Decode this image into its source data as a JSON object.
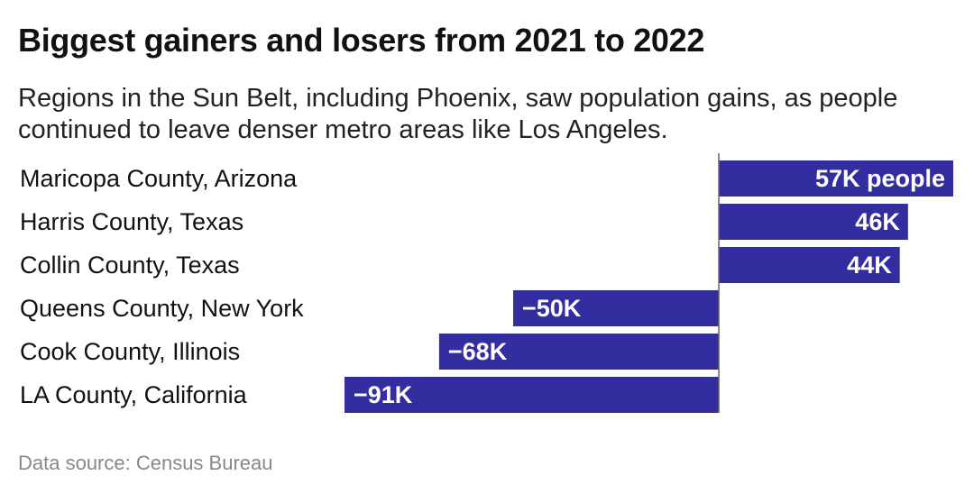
{
  "header": {
    "title": "Biggest gainers and losers from 2021 to 2022",
    "subtitle": "Regions in the Sun Belt, including Phoenix, saw population gains, as people continued to leave denser metro areas like Los Angeles."
  },
  "footer": {
    "source": "Data source: Census Bureau"
  },
  "chart_data": {
    "type": "bar",
    "orientation": "horizontal",
    "title": "Biggest gainers and losers from 2021 to 2022",
    "subtitle": "Regions in the Sun Belt, including Phoenix, saw population gains, as people continued to leave denser metro areas like Los Angeles.",
    "categories": [
      "Maricopa County, Arizona",
      "Harris County, Texas",
      "Collin County, Texas",
      "Queens County, New York",
      "Cook County, Illinois",
      "LA County, California"
    ],
    "values": [
      57000,
      46000,
      44000,
      -50000,
      -68000,
      -91000
    ],
    "data_labels": [
      "57K people",
      "46K",
      "44K",
      "−50K",
      "−68K",
      "−91K"
    ],
    "xlim": [
      -91000,
      57000
    ],
    "bar_color": "#332ea0",
    "label_color": "#ffffff",
    "axis_color": "#666666",
    "grid": false,
    "legend": "none"
  }
}
